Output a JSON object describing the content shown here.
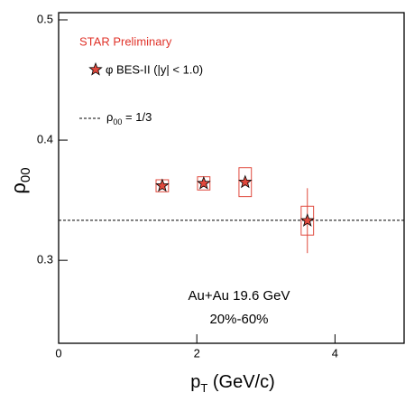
{
  "chart_data": {
    "type": "scatter",
    "annotations": {
      "experiment": "STAR Preliminary",
      "system": "Au+Au 19.6 GeV",
      "centrality": "20%-60%"
    },
    "x_label": [
      "p",
      "T",
      " (GeV/c)"
    ],
    "y_label": [
      "ρ",
      "00"
    ],
    "xlim": [
      0,
      5
    ],
    "xticks": [
      0,
      2,
      4
    ],
    "ylim": [
      0.231,
      0.506
    ],
    "yticks": [
      0.3,
      0.4,
      0.5
    ],
    "reference_line": {
      "value": 0.3333,
      "label": [
        "ρ",
        "00",
        " = 1/3"
      ]
    },
    "series": [
      {
        "name": "φ BES-II (|y| < 1.0)",
        "color": "#e0483c",
        "x": [
          1.5,
          2.1,
          2.7,
          3.6
        ],
        "values": [
          0.362,
          0.364,
          0.365,
          0.333
        ],
        "errors": [
          0.003,
          0.003,
          0.003,
          0.027
        ],
        "sys": [
          0.005,
          0.0055,
          0.012,
          0.012
        ]
      }
    ]
  }
}
